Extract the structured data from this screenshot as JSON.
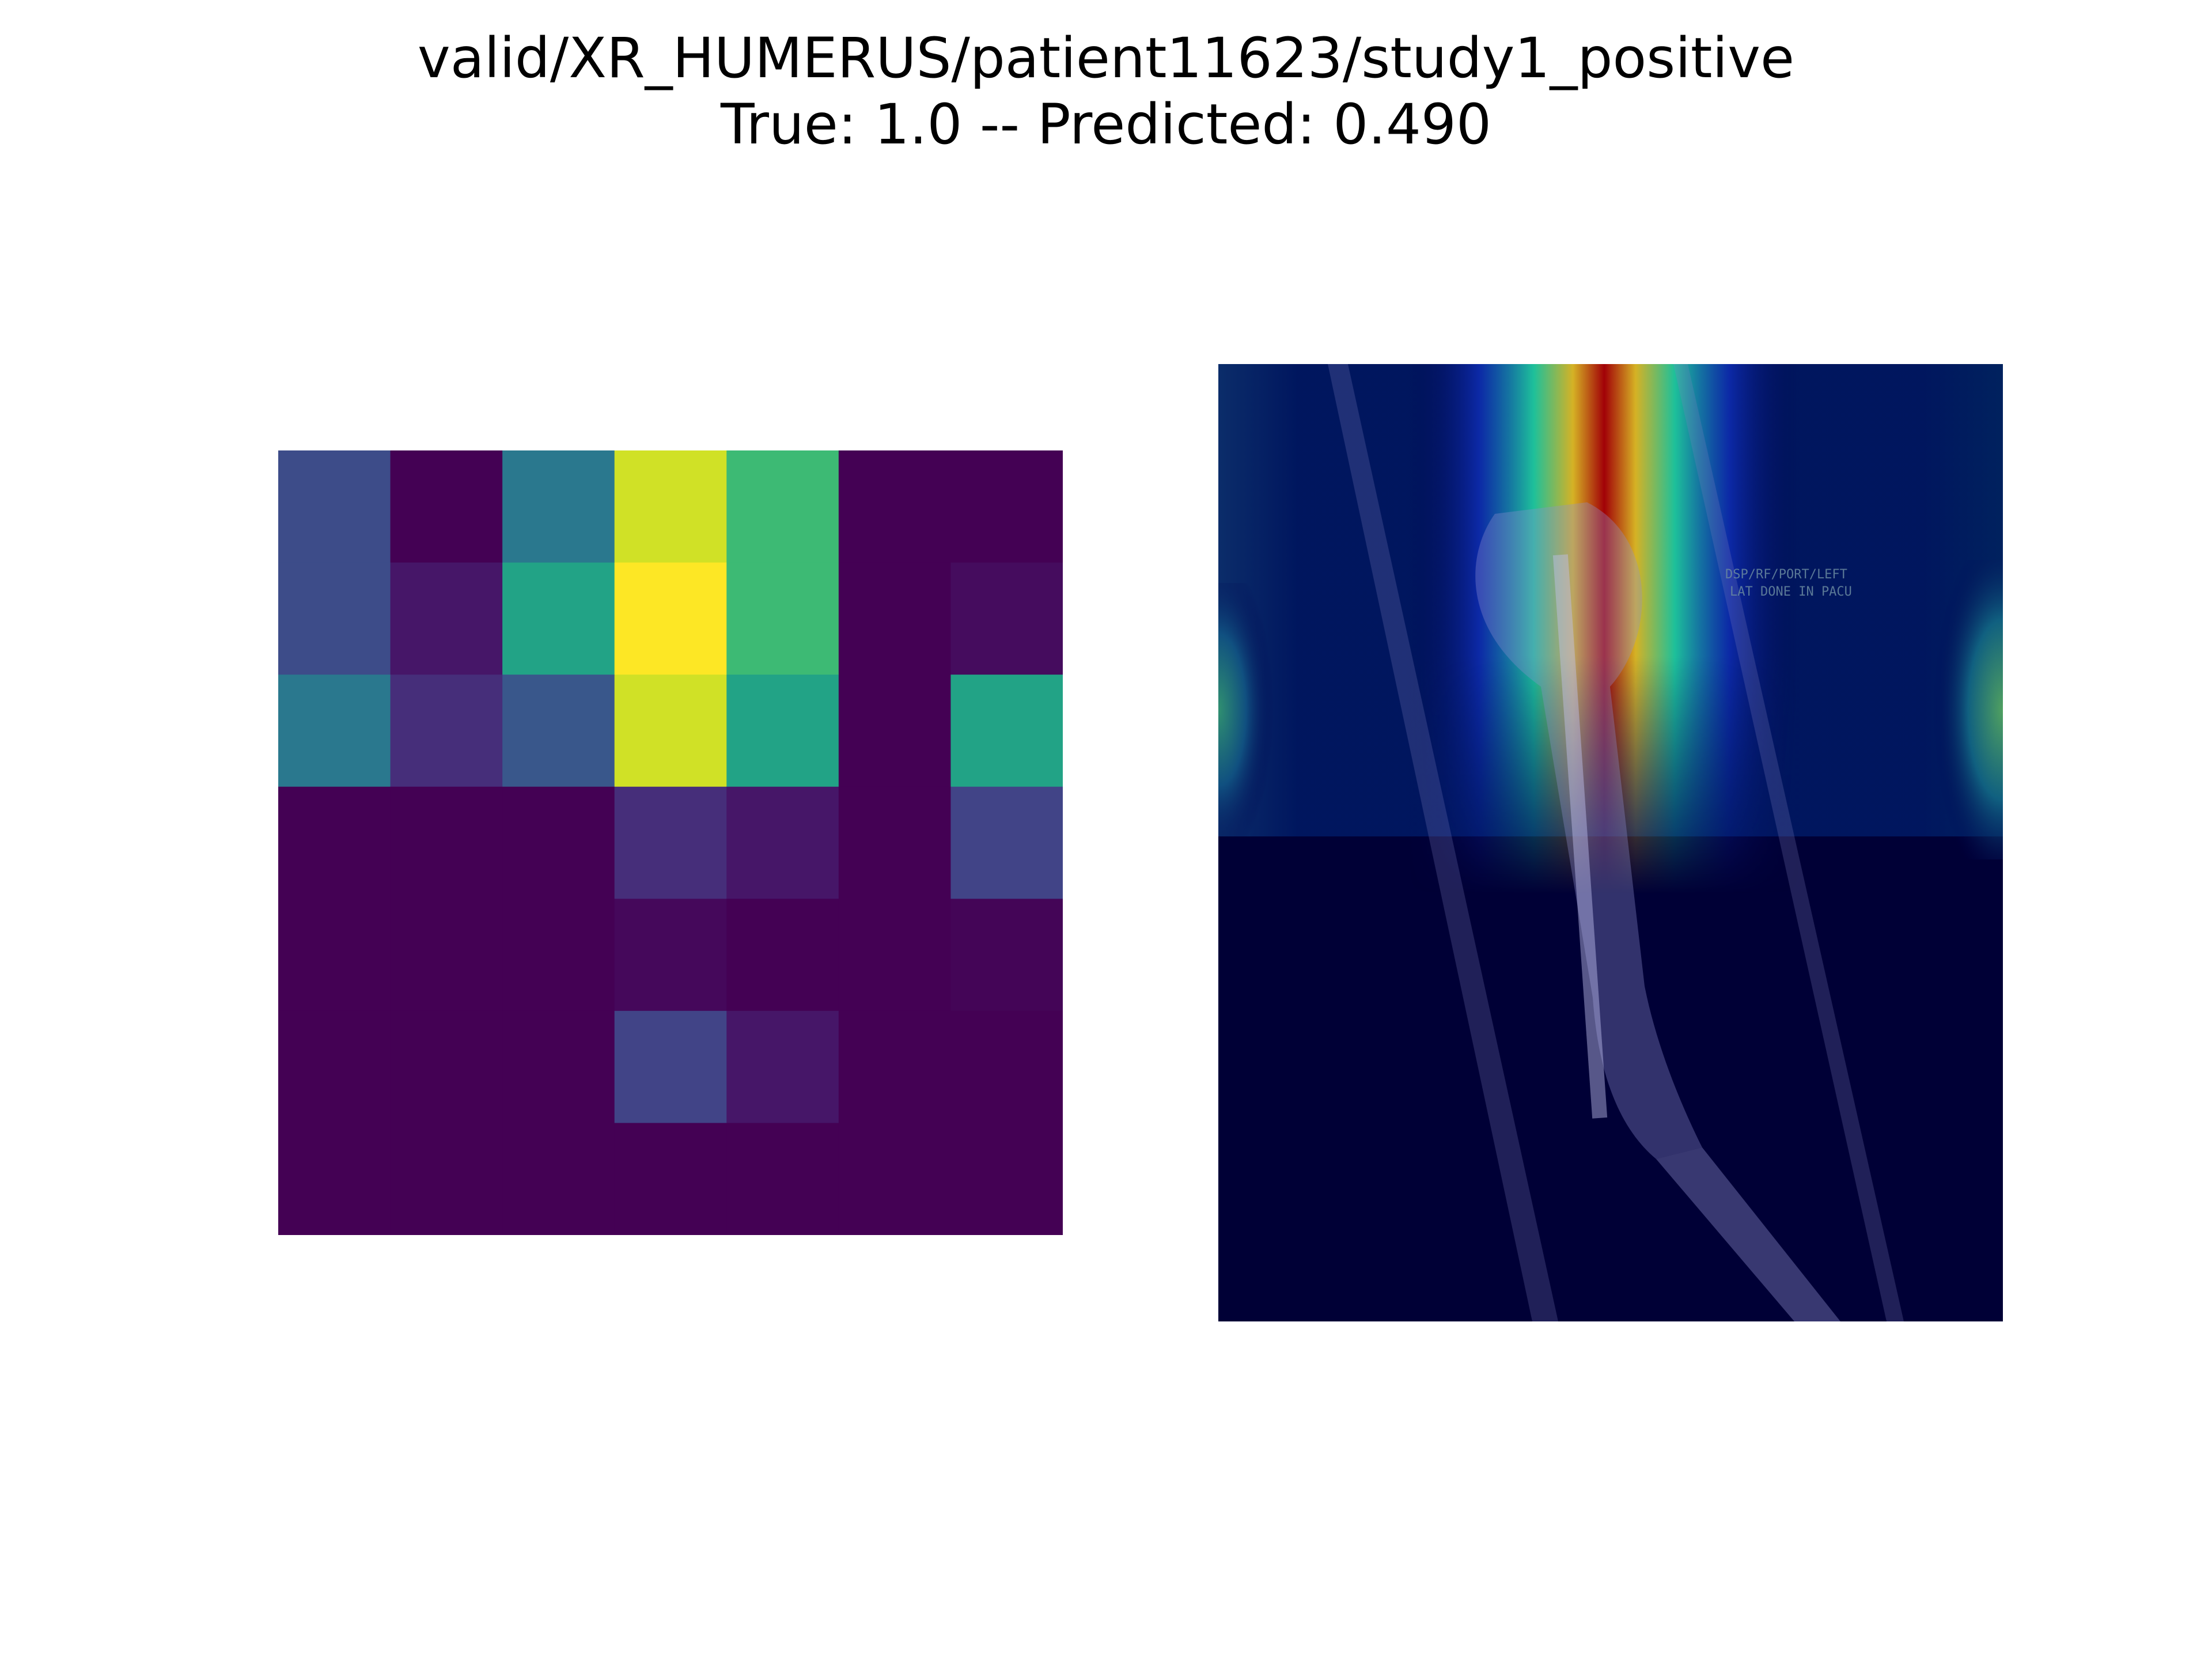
{
  "figure": {
    "title_line1": "valid/XR_HUMERUS/patient11623/study1_positive",
    "title_line2": "True: 1.0 -- Predicted: 0.490"
  },
  "chart_data": [
    {
      "type": "heatmap",
      "name": "class activation map (7x7)",
      "colormap": "viridis",
      "axes": "off",
      "values": [
        [
          0.23,
          0.0,
          0.4,
          0.93,
          0.68,
          0.0,
          0.0
        ],
        [
          0.23,
          0.06,
          0.58,
          1.0,
          0.68,
          0.0,
          0.03
        ],
        [
          0.4,
          0.13,
          0.27,
          0.93,
          0.58,
          0.0,
          0.58
        ],
        [
          0.0,
          0.0,
          0.0,
          0.13,
          0.06,
          0.0,
          0.2
        ],
        [
          0.0,
          0.0,
          0.0,
          0.02,
          0.0,
          0.0,
          0.01
        ],
        [
          0.0,
          0.0,
          0.0,
          0.2,
          0.06,
          0.0,
          0.0
        ],
        [
          0.0,
          0.0,
          0.0,
          0.0,
          0.0,
          0.0,
          0.0
        ]
      ],
      "value_range": [
        0,
        1
      ]
    },
    {
      "type": "heatmap",
      "name": "overlay on radiograph",
      "colormap": "jet",
      "axes": "off",
      "hotspot_column_fraction": 0.5,
      "image_annotation": [
        "DSP/RF/PORT/LEFT",
        "LAT DONE IN PACU"
      ]
    }
  ]
}
